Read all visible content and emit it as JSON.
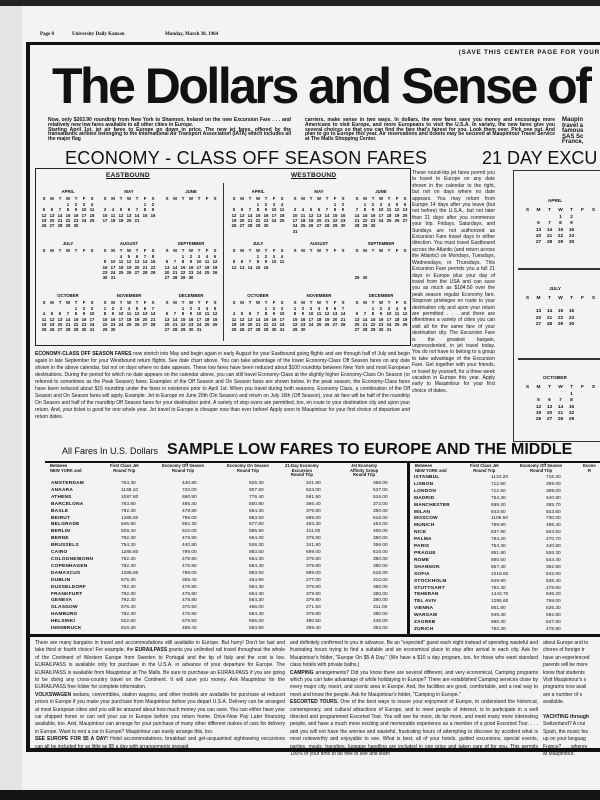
{
  "masthead": {
    "page": "Page 8",
    "paper": "University Daily Kansan",
    "date": "Monday, March 30, 1964"
  },
  "save_note": "(SAVE THIS CENTER PAGE FOR YOUR",
  "headline": "The Dollars and Sense of t",
  "intro": {
    "left_p1": "Now, only $263.90 roundtrip from New York to Shannon, Ireland on the new Excursion Fare . . . and relatively new low fares available to all other cities in Europe.",
    "left_p2": "Starting April 1st, jet air fares to Europe go down in price. The new jet fares, offered by the transatlantic airlines belonging to the International Air Transport Association (IATA) which includes all the major flag",
    "right": "carriers, make sense in two ways. In dollars, the new fares save you money and encourage more Americans to visit Europe, and more Europeans to visit the U.S.A. In variety, the new fares give you several choices so that you can find the fare that's fairest for you. Look them over. Pick one out. And plan to go to Europe this year. Air reservations and tickets may be secured at Maupintour Travel Service at The Malls Shopping Center.",
    "fragment": [
      "Maupin",
      "travel a",
      "famous",
      "SAS Sc",
      "France,"
    ]
  },
  "off_season": {
    "title": "ECONOMY - CLASS OFF SEASON FARES",
    "eastbound_label": "EASTBOUND",
    "westbound_label": "WESTBOUND",
    "day_header": [
      "S",
      "M",
      "T",
      "W",
      "T",
      "F",
      "S"
    ],
    "eastbound": [
      {
        "name": "APRIL",
        "start": 3,
        "weeks": [
          "1 2 3 4",
          "5 6 7 8 9 10 11",
          "12 13 14 15 16 17 18",
          "19 20 21 22 23 24 25",
          "26 27 28 29 30"
        ]
      },
      {
        "name": "MAY",
        "start": 5,
        "weeks": [
          "1 2",
          "3 4 5 6 7 8 9",
          "10 11 12 13 14 15 16",
          "17 18 19 20 21"
        ]
      },
      {
        "name": "JUNE",
        "start": 0,
        "weeks": []
      },
      {
        "name": "JULY",
        "start": 0,
        "weeks": []
      },
      {
        "name": "AUGUST",
        "start": 2,
        "weeks": [
          "4 5 6 7 8",
          "9 10 11 12 13 14 15",
          "16 17 18 19 20 21 22",
          "23 24 25 26 27 28 29",
          "30 31"
        ]
      },
      {
        "name": "SEPTEMBER",
        "start": 2,
        "weeks": [
          "1 2 3 4 5",
          "6 7 8 9 10 11 12",
          "13 14 15 16 17 18 19",
          "20 21 22 23 24 25 26",
          "27 28 29 30"
        ]
      },
      {
        "name": "OCTOBER",
        "start": 4,
        "weeks": [
          "1 2 3",
          "4 5 6 7 8 9 10",
          "11 12 13 14 15 16 17",
          "18 19 20 21 22 23 24",
          "25 26 27 28 29 30 31"
        ]
      },
      {
        "name": "NOVEMBER",
        "start": 0,
        "weeks": [
          "1 2 3 4 5 6 7",
          "8 9 10 11 12 13 14",
          "15 16 17 18 19 20 21",
          "22 23 24 25 26 27 28",
          "29 30"
        ]
      },
      {
        "name": "DECEMBER",
        "start": 2,
        "weeks": [
          "1 2 3 4 5",
          "6 7 8 9 10 11 12",
          "13 14 15 16 17 18 19",
          "20 21 22 23 24 25 26",
          "27 28 29 30 31"
        ]
      }
    ],
    "westbound": [
      {
        "name": "APRIL",
        "start": 3,
        "weeks": [
          "1 2 3 4",
          "5 6 7 8 9 10 11",
          "12 13 14 15 16 17 18",
          "19 20 21 22 23 24 25",
          "26 27 28 29 30"
        ]
      },
      {
        "name": "MAY",
        "start": 5,
        "weeks": [
          "1 2",
          "3 4 5 6 7 8 9",
          "10 11 12 13 14 15 16",
          "17 18 19 20 21 22 23",
          "24 25 26 27 28 29 30",
          "31"
        ]
      },
      {
        "name": "JUNE",
        "start": 1,
        "weeks": [
          "1 2 3 4 5 6",
          "7 8 9 10 11 12 13",
          "14 15 16 17 18 19 20",
          "21 22 23 24 25 26 27",
          "28 29 30"
        ]
      },
      {
        "name": "JULY",
        "start": 3,
        "weeks": [
          "1 2 3 4",
          "5 6 7 8 9 10 11",
          "12 13 14 15 16"
        ]
      },
      {
        "name": "AUGUST",
        "start": 0,
        "weeks": []
      },
      {
        "name": "SEPTEMBER",
        "start": 0,
        "weeks": [
          "",
          "",
          "",
          "",
          "29 30"
        ]
      },
      {
        "name": "OCTOBER",
        "start": 4,
        "weeks": [
          "1 2 3",
          "4 5 6 7 8 9 10",
          "11 12 13 14 15 16 17",
          "18 19 20 21 22 23 24",
          "25 26 27 28 29 30 31"
        ]
      },
      {
        "name": "NOVEMBER",
        "start": 0,
        "weeks": [
          "1 2 3 4 5 6 7",
          "8 9 10 11 12 13 14",
          "15 16 17 18 19 20 21",
          "22 23 24 25 26 27 28",
          "29 30"
        ]
      },
      {
        "name": "DECEMBER",
        "start": 2,
        "weeks": [
          "1 2 3 4 5",
          "6 7 8 9 10 11 12",
          "13 14 15 16 17 18 19",
          "20 21 22 23 24 25 26",
          "27 28 29 30 31"
        ]
      }
    ],
    "paragraph_lead": "ECONOMY-CLASS OFF SEASON FARES",
    "paragraph": " now stretch into May and begin again in early August for your Eastbound going flights and are through half of July and begin again in late September for your Westbound return flights. See date chart above. You can take advantage of the lower Economy-Class Off Season fares on any date shown in the above calendar, but not on days where no date appears. These low fares have been reduced about $100 roundtrip between New York and most European destinations. During the period for which no date appears on the calendar above, you can still travel Economy-Class at the slightly higher Economy-Class On Season (or referred to sometimes as the Peak Season) fares. Examples of the Off Season and On Season fares are shown below. In the peak season, the Economy-Class fares have been reduced about $15 roundtrip under the fares in existence prior to April 1st. When you travel during both seasons, Economy Class, a combination of the Off Season and On Season fares will apply. Example: Jet to Europe on June 20th (On Season) and return on July 16th (Off Season), your air fare will be half of the roundtrip On Season and half of the roundtrip Off Season fares for your destination point. A variety of stop overs are permitted, too, en route to your destination city and upon your return. And, your ticket is good for one whole year. Jet travel to Europe is cheaper now than ever before! Apply soon to Maupintour for your first choice of departure and return dates."
  },
  "excursion": {
    "title": "21 DAY EXCU",
    "text": "These round-trip jet fares permit you to travel to Europe on any date shown in the calendar to the right, but not on days where no date appears. You may return from Europe 14 days after you leave (but not before) the U.S.A., but not later than 21 days after you commence your trip. Fridays, Saturdays, and Sundays are not authorized as Excursion Fare travel days in either direction. You must travel Eastbound across the Atlantic (and return across the Atlantic) on Mondays, Tuesdays, Wednesdays, or Thursdays. This Excursion Fare permits you a full 21 days in Europe plus your day of travel from the USA and can save you as much as $184.50 over the peak season regular Economy fare. Stopover privileges en route to your destination city and upon your return are permitted . . . and there are oftentimes a variety of cities you can visit all for the same fare of your destination city. The Excursion Fare is the greatest bargain, unprecedented, in jet travel today. You do not have to belong to a group to take advantage of the Excursion Fare. Get together with your friends, or travel by yourself, for a three week vacation in Europe this year. Apply early to Maupintour for your first choice of dates.",
    "day_header": [
      "S",
      "M",
      "T",
      "W",
      "T",
      "F",
      "S"
    ],
    "months": [
      {
        "name": "APRIL",
        "weeks": [
          [
            "",
            "",
            "",
            "1",
            "2"
          ],
          [
            "",
            "6",
            "7",
            "8",
            "9"
          ],
          [
            "",
            "13",
            "14",
            "15",
            "16"
          ],
          [
            "",
            "20",
            "21",
            "22",
            "23"
          ],
          [
            "",
            "27",
            "28",
            "29",
            "30"
          ]
        ]
      },
      {
        "name": "JULY",
        "weeks": [
          [],
          [
            "",
            "13",
            "14",
            "15",
            "16"
          ],
          [
            "",
            "20",
            "21",
            "22",
            "23"
          ],
          [
            "",
            "27",
            "28",
            "29",
            "30"
          ]
        ]
      },
      {
        "name": "OCTOBER",
        "weeks": [
          [
            "",
            "",
            "",
            "",
            "1"
          ],
          [
            "",
            "5",
            "6",
            "7",
            "8"
          ],
          [
            "",
            "12",
            "13",
            "14",
            "15"
          ],
          [
            "",
            "19",
            "20",
            "21",
            "22"
          ],
          [
            "",
            "26",
            "27",
            "28",
            "29"
          ]
        ]
      }
    ]
  },
  "fares": {
    "currency_note": "All Fares In U.S. Dollars",
    "title": "SAMPLE LOW FARES TO EUROPE AND THE MIDDLE",
    "left_headers": [
      "Between\nNEW YORK and",
      "First Class Jet\nRound Trip",
      "Economy Off Season\nRound Trip",
      "Economy On Season\nRound Trip",
      "21-Day Economy\nExcursion\nRound Trip",
      "Jet Economy\nAffinity Group\nRound Trip"
    ],
    "right_headers": [
      "Between\nNEW YORK and",
      "First Class Jet\nRound Trip",
      "Economy Off Season\nRound Trip",
      "Econo\nR"
    ],
    "left_rows": [
      [
        "AMSTERDAM",
        "754.30",
        "440.80",
        "526.30",
        "341.80",
        "356.00"
      ],
      [
        "ANKARA",
        "1138.10",
        "722.00",
        "807.50",
        "623.00",
        "537.00"
      ],
      [
        "ATHENS",
        "1087.80",
        "690.90",
        "776.40",
        "591.90",
        "516.00"
      ],
      [
        "BARCELONA",
        "783.80",
        "465.40",
        "550.90",
        "366.40",
        "372.00"
      ],
      [
        "BASLE",
        "792.30",
        "478.80",
        "564.30",
        "379.80",
        "380.00"
      ],
      [
        "BEIRUT",
        "1285.60",
        "798.00",
        "883.50",
        "699.00",
        "616.00"
      ],
      [
        "BELGRADE",
        "945.90",
        "592.30",
        "677.80",
        "493.30",
        "453.00"
      ],
      [
        "BERLIN",
        "829.40",
        "510.00",
        "595.50",
        "411.00",
        "400.00"
      ],
      [
        "BERNE",
        "792.30",
        "478.80",
        "564.30",
        "379.80",
        "380.00"
      ],
      [
        "BRUSSELS",
        "754.30",
        "440.80",
        "526.30",
        "341.80",
        "356.00"
      ],
      [
        "CAIRO",
        "1285.60",
        "798.00",
        "883.50",
        "699.00",
        "616.00"
      ],
      [
        "COLOGNE/BONN",
        "792.30",
        "478.80",
        "564.30",
        "379.80",
        "380.00"
      ],
      [
        "COPENHAGEN",
        "792.30",
        "478.80",
        "564.30",
        "379.80",
        "380.00"
      ],
      [
        "DAMASCUS",
        "1285.60",
        "798.00",
        "883.50",
        "699.00",
        "616.00"
      ],
      [
        "DUBLIN",
        "675.30",
        "369.40",
        "454.90",
        "277.00",
        "310.00"
      ],
      [
        "DUSSELDORF",
        "792.30",
        "478.80",
        "564.30",
        "379.80",
        "380.00"
      ],
      [
        "FRANKFURT",
        "792.30",
        "478.80",
        "564.30",
        "379.80",
        "380.00"
      ],
      [
        "GENEVA",
        "792.30",
        "478.80",
        "564.30",
        "379.80",
        "380.00"
      ],
      [
        "GLASGOW",
        "676.40",
        "370.50",
        "456.00",
        "271.50",
        "311.00"
      ],
      [
        "HAMBURG",
        "792.30",
        "478.80",
        "564.30",
        "379.80",
        "380.00"
      ],
      [
        "HELSINKI",
        "922.50",
        "579.50",
        "665.00",
        "480.50",
        "445.00"
      ],
      [
        "INNSBRUCK",
        "816.30",
        "498.40",
        "583.90",
        "399.40",
        "393.00"
      ]
    ],
    "right_rows": [
      [
        "ISTANBUL",
        "1134.20",
        "716.30"
      ],
      [
        "LISBON",
        "712.50",
        "399.00"
      ],
      [
        "LONDON",
        "712.50",
        "399.00"
      ],
      [
        "MADRID",
        "754.30",
        "440.80"
      ],
      [
        "MANCHESTER",
        "699.20",
        "385.70"
      ],
      [
        "MILAN",
        "843.60",
        "503.50"
      ],
      [
        "MOSCOW",
        "1109.50",
        "730.00"
      ],
      [
        "MUNICH",
        "799.90",
        "486.40"
      ],
      [
        "NICE",
        "837.90",
        "503.50"
      ],
      [
        "PALMA",
        "784.20",
        "470.70"
      ],
      [
        "PARIS",
        "754.30",
        "440.80"
      ],
      [
        "PRAGUE",
        "851.80",
        "526.30"
      ],
      [
        "ROME",
        "890.60",
        "544.40"
      ],
      [
        "SHANNON",
        "657.40",
        "362.90"
      ],
      [
        "SOFIA",
        "1018.60",
        "642.60"
      ],
      [
        "STOCKHOLM",
        "849.90",
        "536.40"
      ],
      [
        "STUTTGART",
        "792.30",
        "478.80"
      ],
      [
        "TEHERAN",
        "1443.70",
        "946.20"
      ],
      [
        "TEL AVIV",
        "1285.60",
        "798.00"
      ],
      [
        "VIENNA",
        "851.80",
        "526.30"
      ],
      [
        "WARSAW",
        "949.30",
        "592.80"
      ],
      [
        "ZAGREB",
        "880.30",
        "547.60"
      ],
      [
        "ZURICH",
        "792.30",
        "478.80"
      ]
    ]
  },
  "bottom": {
    "col1_text1": "There are many bargains in travel and accommodations still available in Europe. But hurry! Don't be last and take third or fourth choice! For example, the ",
    "col1_b1": "EURAILPASS",
    "col1_text2": " grants you unlimited rail travel throughout the whole of the Continent of Western Europe from Sweden to Portugal and the tip of Italy and the cost is low. EURAILPASS is available only for purchase in the U.S.A. in advance of your departure for Europe. The EURAILPASS is available from Maupintour at The Malls. Be sure to purchase an EURAILPASS if you are going to be doing any cross-country travel on the Continent. It will save you money. Ask Maupintour for the EURAILPASS free folder for complete information.",
    "col1_b2": "VOLKSWAGEN",
    "col1_text3": " sedans, convertibles, station wagons, and other models are available for purchase at reduced prices in Europe if you make your purchase from Maupintour before you depart U.S.A. Delivery can be arranged at most European cities and you will be amazed about how much money you can save. You can either have your car shipped home or can sell your car in Europe before you return home. Drive-Now Pay Later financing available, too. And, Maupintour can arrange for your purchase of many other different makes of cars for delivery in Europe. Want to rent a car in Europe? Maupintour can easily arrange this, too.",
    "col1_b3": "SEE EUROPE FOR $5 A DAY!",
    "col1_text4": " Hotel accommodations, breakfast and get-acquainted sightseeing excursions can all be included for as little as $5 a day with arrangements prepaid",
    "col2_text1": "and definitely confirmed to you in advance. Be an \"expected\" guest each night instead of spending wasteful and frustrating hours trying to find a suitable and an economical place to stay after arrival in each city. Ask for Maupintour's folder, \"Europe On $5 A Day.\" (We have a $10 a day program, too, for those who want standard class hotels with private baths.)",
    "col2_b1": "CAMPING",
    "col2_text2": " arrangements? Did you know there are several different, and very economical, Camping programs which you can take advantage of while holidaying in Europe? There are established Camping services close by every major city, resort, and scenic area in Europe. And, the facilities are good, comfortable, and a real way to meet and know the people. Ask for Maupintour's folder, \"Camping in Europe.\"",
    "col2_b2": "ESCORTED TOURS.",
    "col2_text3": " One of the best ways to insure your enjoyment of Europe, to understand the historical, contemporary, and cultural attractions of Europe, and to meet people of interest, is to participate in a well directed and programmed Escorted Tour. You will see far more, do far more, and meet many more interesting people, and have a much more exciting and memorable experience as a member of a good Escorted Tour. . . . and you will not have the worries and wasteful, frustrating hours of attempting to discover by accident what is most noteworthy and enjoyable to see. What is best, all of your hotels, guided excursions, special events, parties, meals, transfers, luggage handling are included in one price and taken care of for you. This permits 100% of your time to be free to see and learn",
    "col3_lines": [
      "about Europe and to",
      "chores of foreign tr",
      "have an experienced",
      "parents will be more",
      "know that students",
      "Visit Maupintour's s",
      "programs now avail",
      "are a number of s",
      "available.",
      "",
      "YACHTING through",
      "Switzerland? A crui",
      "Spain, the music fes",
      "up on your languag",
      "France? . . . wherev",
      "at Maupintour."
    ]
  }
}
